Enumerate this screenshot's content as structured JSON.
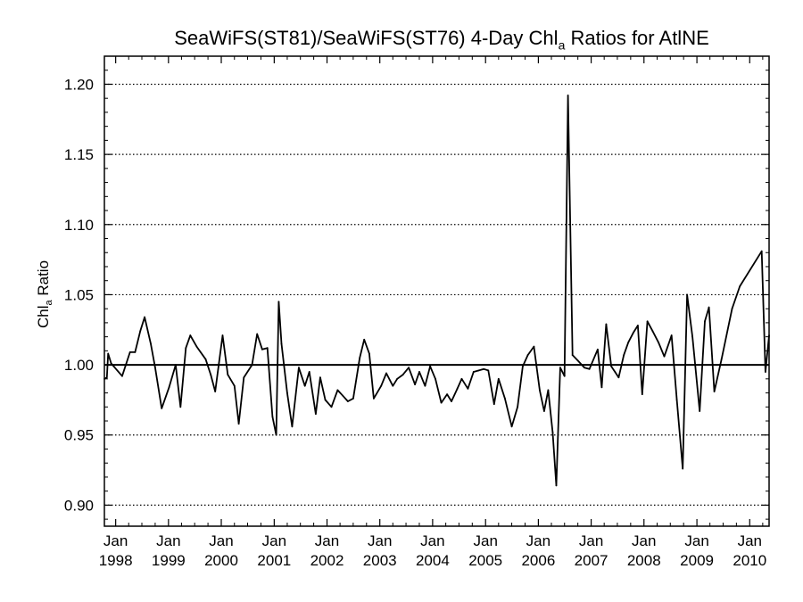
{
  "chart_data": {
    "type": "line",
    "title": {
      "before": "SeaWiFS(ST81)/SeaWiFS(ST76) 4-Day Chl",
      "sub": "a",
      "after": " Ratios for AtlNE"
    },
    "ylabel": {
      "before": "Chl",
      "sub": "a",
      "after": " Ratio"
    },
    "xlabel": "",
    "xlim": [
      "1997-10-15",
      "2010-05-15"
    ],
    "ylim": [
      0.885,
      1.22
    ],
    "yticks": [
      0.9,
      0.95,
      1.0,
      1.05,
      1.1,
      1.15,
      1.2
    ],
    "ytick_labels": [
      "0.90",
      "0.95",
      "1.00",
      "1.05",
      "1.10",
      "1.15",
      "1.20"
    ],
    "xticks": [
      {
        "date": "1998-01-01",
        "month": "Jan",
        "year": "1998"
      },
      {
        "date": "1999-01-01",
        "month": "Jan",
        "year": "1999"
      },
      {
        "date": "2000-01-01",
        "month": "Jan",
        "year": "2000"
      },
      {
        "date": "2001-01-01",
        "month": "Jan",
        "year": "2001"
      },
      {
        "date": "2002-01-01",
        "month": "Jan",
        "year": "2002"
      },
      {
        "date": "2003-01-01",
        "month": "Jan",
        "year": "2003"
      },
      {
        "date": "2004-01-01",
        "month": "Jan",
        "year": "2004"
      },
      {
        "date": "2005-01-01",
        "month": "Jan",
        "year": "2005"
      },
      {
        "date": "2006-01-01",
        "month": "Jan",
        "year": "2006"
      },
      {
        "date": "2007-01-01",
        "month": "Jan",
        "year": "2007"
      },
      {
        "date": "2008-01-01",
        "month": "Jan",
        "year": "2008"
      },
      {
        "date": "2009-01-01",
        "month": "Jan",
        "year": "2009"
      },
      {
        "date": "2010-01-01",
        "month": "Jan",
        "year": "2010"
      }
    ],
    "grid": "horizontal dotted at y ticks",
    "reference_line": 1.0,
    "series": [
      {
        "points": [
          [
            "1997-10-15",
            0.99
          ],
          [
            "1997-11-01",
            0.991
          ],
          [
            "1997-11-10",
            1.008
          ],
          [
            "1997-12-01",
            1.001
          ],
          [
            "1998-02-15",
            0.992
          ],
          [
            "1998-04-10",
            1.009
          ],
          [
            "1998-05-15",
            1.009
          ],
          [
            "1998-06-20",
            1.024
          ],
          [
            "1998-07-20",
            1.034
          ],
          [
            "1998-09-01",
            1.015
          ],
          [
            "1998-10-01",
            0.998
          ],
          [
            "1998-11-15",
            0.969
          ],
          [
            "1999-01-05",
            0.984
          ],
          [
            "1999-02-20",
            1.0
          ],
          [
            "1999-03-25",
            0.97
          ],
          [
            "1999-05-01",
            1.012
          ],
          [
            "1999-06-01",
            1.021
          ],
          [
            "1999-07-15",
            1.013
          ],
          [
            "1999-09-15",
            1.004
          ],
          [
            "1999-10-20",
            0.993
          ],
          [
            "1999-11-20",
            0.981
          ],
          [
            "2000-01-10",
            1.021
          ],
          [
            "2000-02-15",
            0.993
          ],
          [
            "2000-04-01",
            0.985
          ],
          [
            "2000-05-01",
            0.958
          ],
          [
            "2000-06-05",
            0.991
          ],
          [
            "2000-08-01",
            1.0
          ],
          [
            "2000-09-05",
            1.022
          ],
          [
            "2000-10-10",
            1.011
          ],
          [
            "2000-11-15",
            1.012
          ],
          [
            "2000-12-20",
            0.963
          ],
          [
            "2001-01-15",
            0.95
          ],
          [
            "2001-02-01",
            1.045
          ],
          [
            "2001-02-20",
            1.015
          ],
          [
            "2001-04-01",
            0.98
          ],
          [
            "2001-05-05",
            0.956
          ],
          [
            "2001-06-20",
            0.998
          ],
          [
            "2001-08-01",
            0.985
          ],
          [
            "2001-09-01",
            0.995
          ],
          [
            "2001-10-15",
            0.965
          ],
          [
            "2001-11-15",
            0.991
          ],
          [
            "2001-12-20",
            0.975
          ],
          [
            "2002-02-01",
            0.97
          ],
          [
            "2002-03-15",
            0.982
          ],
          [
            "2002-04-20",
            0.978
          ],
          [
            "2002-05-25",
            0.974
          ],
          [
            "2002-07-01",
            0.976
          ],
          [
            "2002-08-15",
            1.005
          ],
          [
            "2002-09-15",
            1.018
          ],
          [
            "2002-10-20",
            1.008
          ],
          [
            "2002-11-20",
            0.976
          ],
          [
            "2003-01-10",
            0.985
          ],
          [
            "2003-02-15",
            0.994
          ],
          [
            "2003-04-01",
            0.985
          ],
          [
            "2003-05-01",
            0.99
          ],
          [
            "2003-06-10",
            0.993
          ],
          [
            "2003-07-20",
            0.998
          ],
          [
            "2003-09-01",
            0.986
          ],
          [
            "2003-10-01",
            0.995
          ],
          [
            "2003-11-10",
            0.985
          ],
          [
            "2003-12-15",
            0.999
          ],
          [
            "2004-01-20",
            0.99
          ],
          [
            "2004-03-01",
            0.973
          ],
          [
            "2004-04-10",
            0.979
          ],
          [
            "2004-05-10",
            0.974
          ],
          [
            "2004-06-20",
            0.983
          ],
          [
            "2004-07-20",
            0.99
          ],
          [
            "2004-09-01",
            0.983
          ],
          [
            "2004-10-10",
            0.995
          ],
          [
            "2004-11-15",
            0.996
          ],
          [
            "2004-12-20",
            0.997
          ],
          [
            "2005-01-20",
            0.996
          ],
          [
            "2005-03-01",
            0.972
          ],
          [
            "2005-04-01",
            0.99
          ],
          [
            "2005-05-15",
            0.976
          ],
          [
            "2005-07-01",
            0.956
          ],
          [
            "2005-08-10",
            0.97
          ],
          [
            "2005-09-15",
            0.999
          ],
          [
            "2005-10-20",
            1.007
          ],
          [
            "2005-12-01",
            1.013
          ],
          [
            "2006-01-10",
            0.982
          ],
          [
            "2006-02-10",
            0.967
          ],
          [
            "2006-03-10",
            0.982
          ],
          [
            "2006-04-10",
            0.952
          ],
          [
            "2006-05-05",
            0.914
          ],
          [
            "2006-06-01",
            0.998
          ],
          [
            "2006-07-01",
            0.992
          ],
          [
            "2006-07-25",
            1.192
          ],
          [
            "2006-08-25",
            1.007
          ],
          [
            "2006-10-01",
            1.003
          ],
          [
            "2006-11-15",
            0.998
          ],
          [
            "2006-12-20",
            0.997
          ],
          [
            "2007-02-15",
            1.011
          ],
          [
            "2007-03-15",
            0.984
          ],
          [
            "2007-04-15",
            1.029
          ],
          [
            "2007-05-20",
            0.999
          ],
          [
            "2007-06-15",
            0.995
          ],
          [
            "2007-07-10",
            0.991
          ],
          [
            "2007-08-15",
            1.007
          ],
          [
            "2007-09-15",
            1.016
          ],
          [
            "2007-10-20",
            1.023
          ],
          [
            "2007-11-20",
            1.028
          ],
          [
            "2007-12-20",
            0.979
          ],
          [
            "2008-01-25",
            1.031
          ],
          [
            "2008-03-01",
            1.024
          ],
          [
            "2008-04-10",
            1.016
          ],
          [
            "2008-05-20",
            1.006
          ],
          [
            "2008-07-10",
            1.021
          ],
          [
            "2008-08-15",
            0.975
          ],
          [
            "2008-09-25",
            0.926
          ],
          [
            "2008-10-25",
            1.05
          ],
          [
            "2008-12-01",
            1.02
          ],
          [
            "2009-01-20",
            0.967
          ],
          [
            "2009-02-25",
            1.031
          ],
          [
            "2009-03-25",
            1.041
          ],
          [
            "2009-05-01",
            0.981
          ],
          [
            "2009-06-20",
            1.004
          ],
          [
            "2009-09-01",
            1.04
          ],
          [
            "2009-10-25",
            1.056
          ],
          [
            "2010-03-25",
            1.081
          ],
          [
            "2010-04-20",
            0.995
          ],
          [
            "2010-05-15",
            1.021
          ]
        ]
      }
    ]
  }
}
